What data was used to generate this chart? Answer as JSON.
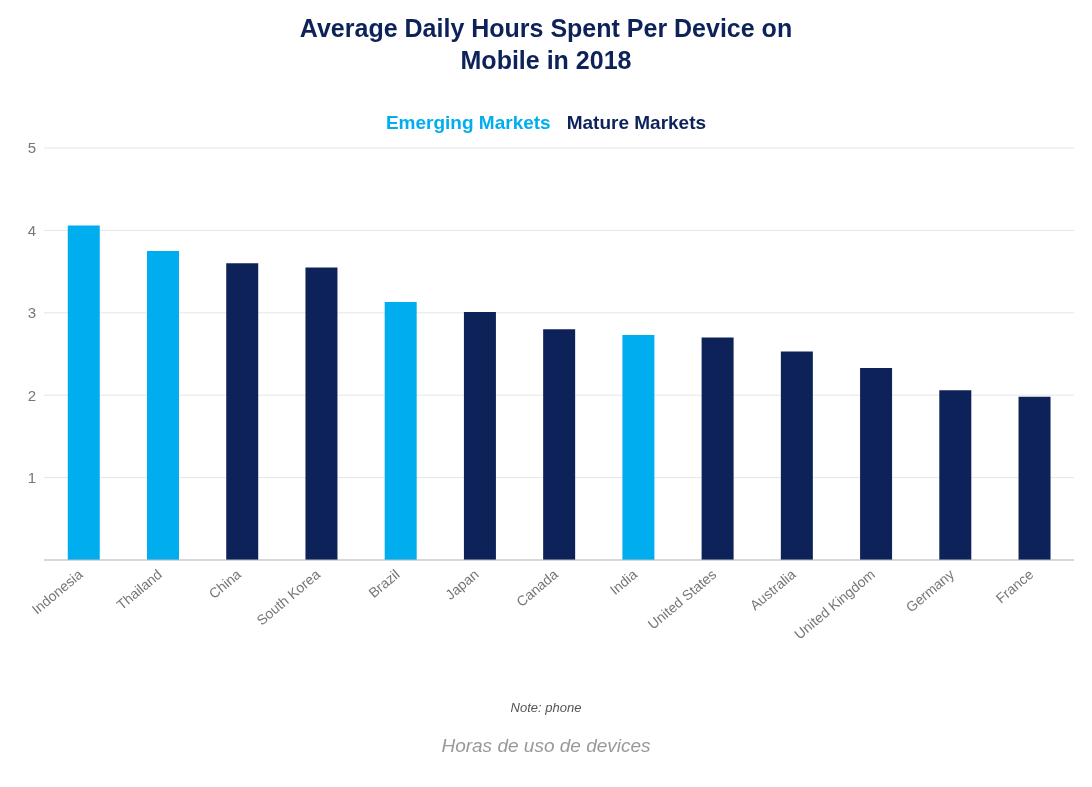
{
  "chart_data": {
    "type": "bar",
    "title": "Average Daily Hours Spent Per Device on Mobile in 2018",
    "categories": [
      "Indonesia",
      "Thailand",
      "China",
      "South Korea",
      "Brazil",
      "Japan",
      "Canada",
      "India",
      "United States",
      "Australia",
      "United Kingdom",
      "Germany",
      "France"
    ],
    "series": [
      {
        "name": "Emerging Markets",
        "color": "#00aeef",
        "values": [
          4.06,
          3.75,
          null,
          null,
          3.13,
          null,
          null,
          2.73,
          null,
          null,
          null,
          null,
          null
        ]
      },
      {
        "name": "Mature Markets",
        "color": "#0d2259",
        "values": [
          null,
          null,
          3.6,
          3.55,
          null,
          3.01,
          2.8,
          null,
          2.7,
          2.53,
          2.33,
          2.06,
          1.98
        ]
      }
    ],
    "stacked": true,
    "ylim": [
      0,
      5
    ],
    "yticks": [
      1,
      2,
      3,
      4,
      5
    ],
    "grid": "y",
    "legend": "top",
    "annotations": [
      "Note: phone",
      "Horas de uso de devices"
    ]
  }
}
